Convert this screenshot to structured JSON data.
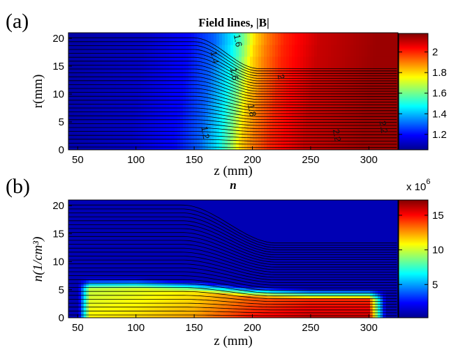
{
  "chart_data": [
    {
      "type": "heatmap",
      "panel_label": "(a)",
      "title": "Field lines, |B|",
      "xlabel": "z (mm)",
      "ylabel": "r(mm)",
      "xlim": [
        42,
        325
      ],
      "ylim": [
        0,
        21
      ],
      "xticks": [
        50,
        100,
        150,
        200,
        250,
        300
      ],
      "yticks": [
        0,
        5,
        10,
        15,
        20
      ],
      "colorbar": {
        "min": 1.05,
        "max": 2.18,
        "ticks": [
          1.2,
          1.4,
          1.6,
          1.8,
          2
        ]
      },
      "colormap": [
        "#00008f",
        "#0000ff",
        "#00ffff",
        "#ffff00",
        "#ff0000",
        "#800000"
      ],
      "field_profile": {
        "z": [
          42,
          100,
          140,
          160,
          175,
          185,
          195,
          205,
          220,
          250,
          300,
          325
        ],
        "B": [
          1.08,
          1.12,
          1.2,
          1.3,
          1.45,
          1.6,
          1.8,
          1.9,
          2.0,
          2.1,
          2.15,
          2.15
        ]
      },
      "field_lines": {
        "r_left": [
          0.5,
          1.2,
          1.9,
          2.6,
          3.3,
          4.0,
          4.7,
          5.4,
          6.1,
          6.8,
          7.5,
          8.2,
          8.9,
          9.6,
          10.3,
          11.0,
          11.7,
          12.4,
          13.1,
          13.8,
          14.5,
          15.2,
          15.9,
          16.6,
          17.3,
          18.0,
          18.7,
          19.4,
          20.1
        ],
        "transition_z": [
          150,
          205
        ]
      },
      "contour_labels": [
        {
          "text": "1.2",
          "z": 157,
          "r": 3.0
        },
        {
          "text": "1.4",
          "z": 165,
          "r": 16.5
        },
        {
          "text": "1.6",
          "z": 185,
          "r": 19.5
        },
        {
          "text": "1.6",
          "z": 182,
          "r": 13.5
        },
        {
          "text": "1.8",
          "z": 197,
          "r": 7.0
        },
        {
          "text": "2",
          "z": 222,
          "r": 13.0
        },
        {
          "text": "2.2",
          "z": 270,
          "r": 2.5
        },
        {
          "text": "2.2",
          "z": 310,
          "r": 4.0
        }
      ]
    },
    {
      "type": "heatmap",
      "panel_label": "(b)",
      "title": "n",
      "xlabel": "z (mm)",
      "ylabel": "n(1/cm³)",
      "xlim": [
        42,
        325
      ],
      "ylim": [
        0,
        21
      ],
      "xticks": [
        50,
        100,
        150,
        200,
        250,
        300
      ],
      "yticks": [
        0,
        5,
        10,
        15,
        20
      ],
      "colorbar": {
        "min": 0.2,
        "max": 17.2,
        "ticks": [
          5,
          10,
          15
        ],
        "exponent_label": "x 10",
        "exponent": "6"
      },
      "colormap": [
        "#00008f",
        "#0000ff",
        "#00ffff",
        "#ffff00",
        "#ff0000",
        "#800000"
      ],
      "density_profile": {
        "z": [
          50,
          60,
          100,
          150,
          200,
          250,
          300,
          315
        ],
        "n_axis": [
          0.5,
          11.0,
          11.5,
          12.5,
          15.0,
          16.0,
          16.0,
          0.5
        ],
        "edge_r": [
          6.5,
          6.5,
          6.5,
          6.0,
          5.0,
          4.6,
          4.6,
          4.6
        ]
      }
    }
  ]
}
